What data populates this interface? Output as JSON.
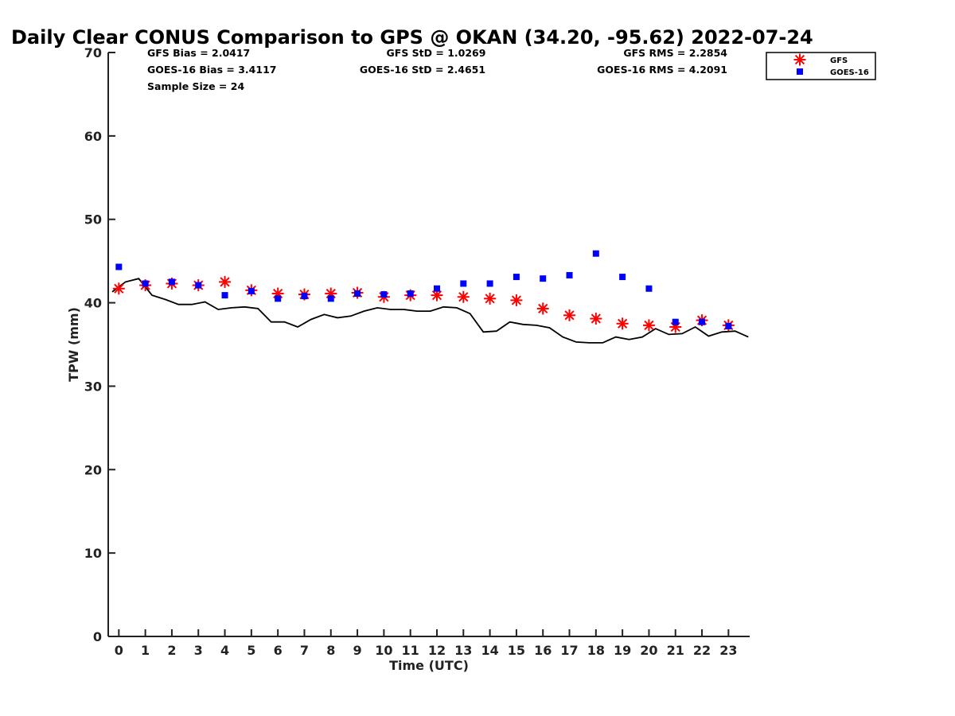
{
  "chart_data": {
    "type": "scatter",
    "title": "Daily Clear CONUS Comparison to GPS @ OKAN (34.20, -95.62) 2022-07-24",
    "xlabel": "Time (UTC)",
    "ylabel": "TPW (mm)",
    "xlim": [
      -0.4,
      23.8
    ],
    "ylim": [
      0,
      70
    ],
    "x_ticks": [
      0,
      1,
      2,
      3,
      4,
      5,
      6,
      7,
      8,
      9,
      10,
      11,
      12,
      13,
      14,
      15,
      16,
      17,
      18,
      19,
      20,
      21,
      22,
      23
    ],
    "y_ticks": [
      0,
      10,
      20,
      30,
      40,
      50,
      60,
      70
    ],
    "grid": false,
    "legend_position": "top-right, outside plot",
    "stats": {
      "gfs_bias": "GFS Bias = 2.0417",
      "goes_bias": "GOES-16 Bias = 3.4117",
      "sample_size": "Sample Size = 24",
      "gfs_std": "GFS StD = 1.0269",
      "goes_std": "GOES-16 StD = 2.4651",
      "gfs_rms": "GFS RMS = 2.2854",
      "goes_rms": "GOES-16 RMS = 4.2091"
    },
    "series": [
      {
        "name": "GFS",
        "marker": "asterisk",
        "color": "#ff0000",
        "x": [
          0,
          1,
          2,
          3,
          4,
          5,
          6,
          7,
          8,
          9,
          10,
          11,
          12,
          13,
          14,
          15,
          16,
          17,
          18,
          19,
          20,
          21,
          22,
          23
        ],
        "y": [
          41.7,
          42.1,
          42.3,
          42.1,
          42.5,
          41.5,
          41.1,
          41.0,
          41.1,
          41.2,
          40.7,
          40.9,
          40.9,
          40.7,
          40.5,
          40.3,
          39.3,
          38.5,
          38.1,
          37.5,
          37.3,
          37.1,
          37.9,
          37.3
        ]
      },
      {
        "name": "GOES-16",
        "marker": "square",
        "color": "#0000ff",
        "x": [
          0,
          1,
          2,
          3,
          4,
          5,
          6,
          7,
          8,
          9,
          10,
          11,
          12,
          13,
          14,
          15,
          16,
          17,
          18,
          19,
          20,
          21,
          22,
          23
        ],
        "y": [
          44.3,
          42.3,
          42.5,
          42.1,
          40.9,
          41.4,
          40.5,
          40.8,
          40.5,
          41.1,
          41.0,
          41.1,
          41.7,
          42.3,
          42.3,
          43.1,
          42.9,
          43.3,
          45.9,
          43.1,
          41.7,
          37.7,
          37.7,
          37.2
        ]
      },
      {
        "name": "GPS",
        "marker": "line",
        "color": "#000000",
        "x": [
          -0.25,
          0.25,
          0.75,
          1.25,
          1.75,
          2.25,
          2.75,
          3.25,
          3.75,
          4.25,
          4.75,
          5.25,
          5.75,
          6.25,
          6.75,
          7.25,
          7.75,
          8.25,
          8.75,
          9.25,
          9.75,
          10.25,
          10.75,
          11.25,
          11.75,
          12.25,
          12.75,
          13.25,
          13.75,
          14.25,
          14.75,
          15.25,
          15.75,
          16.25,
          16.75,
          17.25,
          17.75,
          18.25,
          18.75,
          19.25,
          19.75,
          20.25,
          20.75,
          21.25,
          21.75,
          22.25,
          22.75,
          23.25,
          23.75
        ],
        "y": [
          41.3,
          42.5,
          42.9,
          40.9,
          40.4,
          39.8,
          39.8,
          40.1,
          39.2,
          39.4,
          39.5,
          39.3,
          37.7,
          37.7,
          37.1,
          38.0,
          38.6,
          38.2,
          38.4,
          39.0,
          39.4,
          39.2,
          39.2,
          39.0,
          39.0,
          39.5,
          39.4,
          38.7,
          36.5,
          36.6,
          37.7,
          37.4,
          37.3,
          37.0,
          35.9,
          35.3,
          35.2,
          35.2,
          35.9,
          35.6,
          35.9,
          36.9,
          36.2,
          36.3,
          37.1,
          36.0,
          36.5,
          36.6,
          35.9
        ]
      }
    ]
  }
}
